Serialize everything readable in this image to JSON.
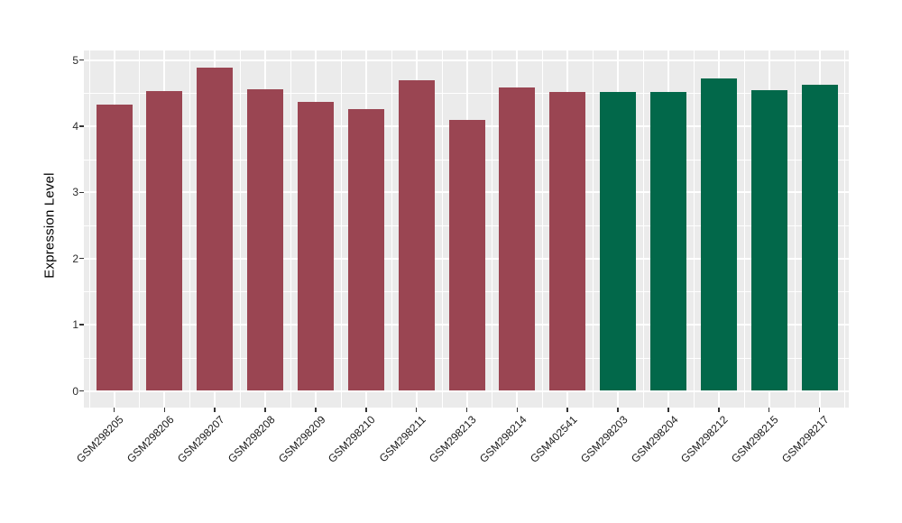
{
  "figure": {
    "background_color": "#FFFFFF",
    "panel_background_color": "#EBEBEB",
    "gridline_color": "#FFFFFF",
    "axis_text_color": "#1A1A1A",
    "tick_mark_color": "#333333"
  },
  "chart_data": {
    "type": "bar",
    "title": "",
    "xlabel": "",
    "ylabel": "Expression Level",
    "ylim": [
      0,
      5
    ],
    "yticks": [
      "0",
      "1",
      "2",
      "3",
      "4",
      "5"
    ],
    "grid": "white major gridlines at integers and minor gridlines at 0.5 steps on gray panel; vertical major lines at category centers, minor between categories",
    "legend": "none",
    "categories": [
      "GSM298205",
      "GSM298206",
      "GSM298207",
      "GSM298208",
      "GSM298209",
      "GSM298210",
      "GSM298211",
      "GSM298213",
      "GSM298214",
      "GSM402541",
      "GSM298203",
      "GSM298204",
      "GSM298212",
      "GSM298215",
      "GSM298217"
    ],
    "series": [
      {
        "name": "Expression Level",
        "values": [
          4.32,
          4.53,
          4.89,
          4.56,
          4.36,
          4.26,
          4.7,
          4.09,
          4.59,
          4.51,
          4.52,
          4.52,
          4.72,
          4.55,
          4.63
        ]
      }
    ],
    "bar_colors": [
      "#9A4552",
      "#9A4552",
      "#9A4552",
      "#9A4552",
      "#9A4552",
      "#9A4552",
      "#9A4552",
      "#9A4552",
      "#9A4552",
      "#9A4552",
      "#02684A",
      "#02684A",
      "#02684A",
      "#02684A",
      "#02684A"
    ],
    "group_colors": {
      "red_group": "#9A4552",
      "green_group": "#02684A"
    }
  }
}
